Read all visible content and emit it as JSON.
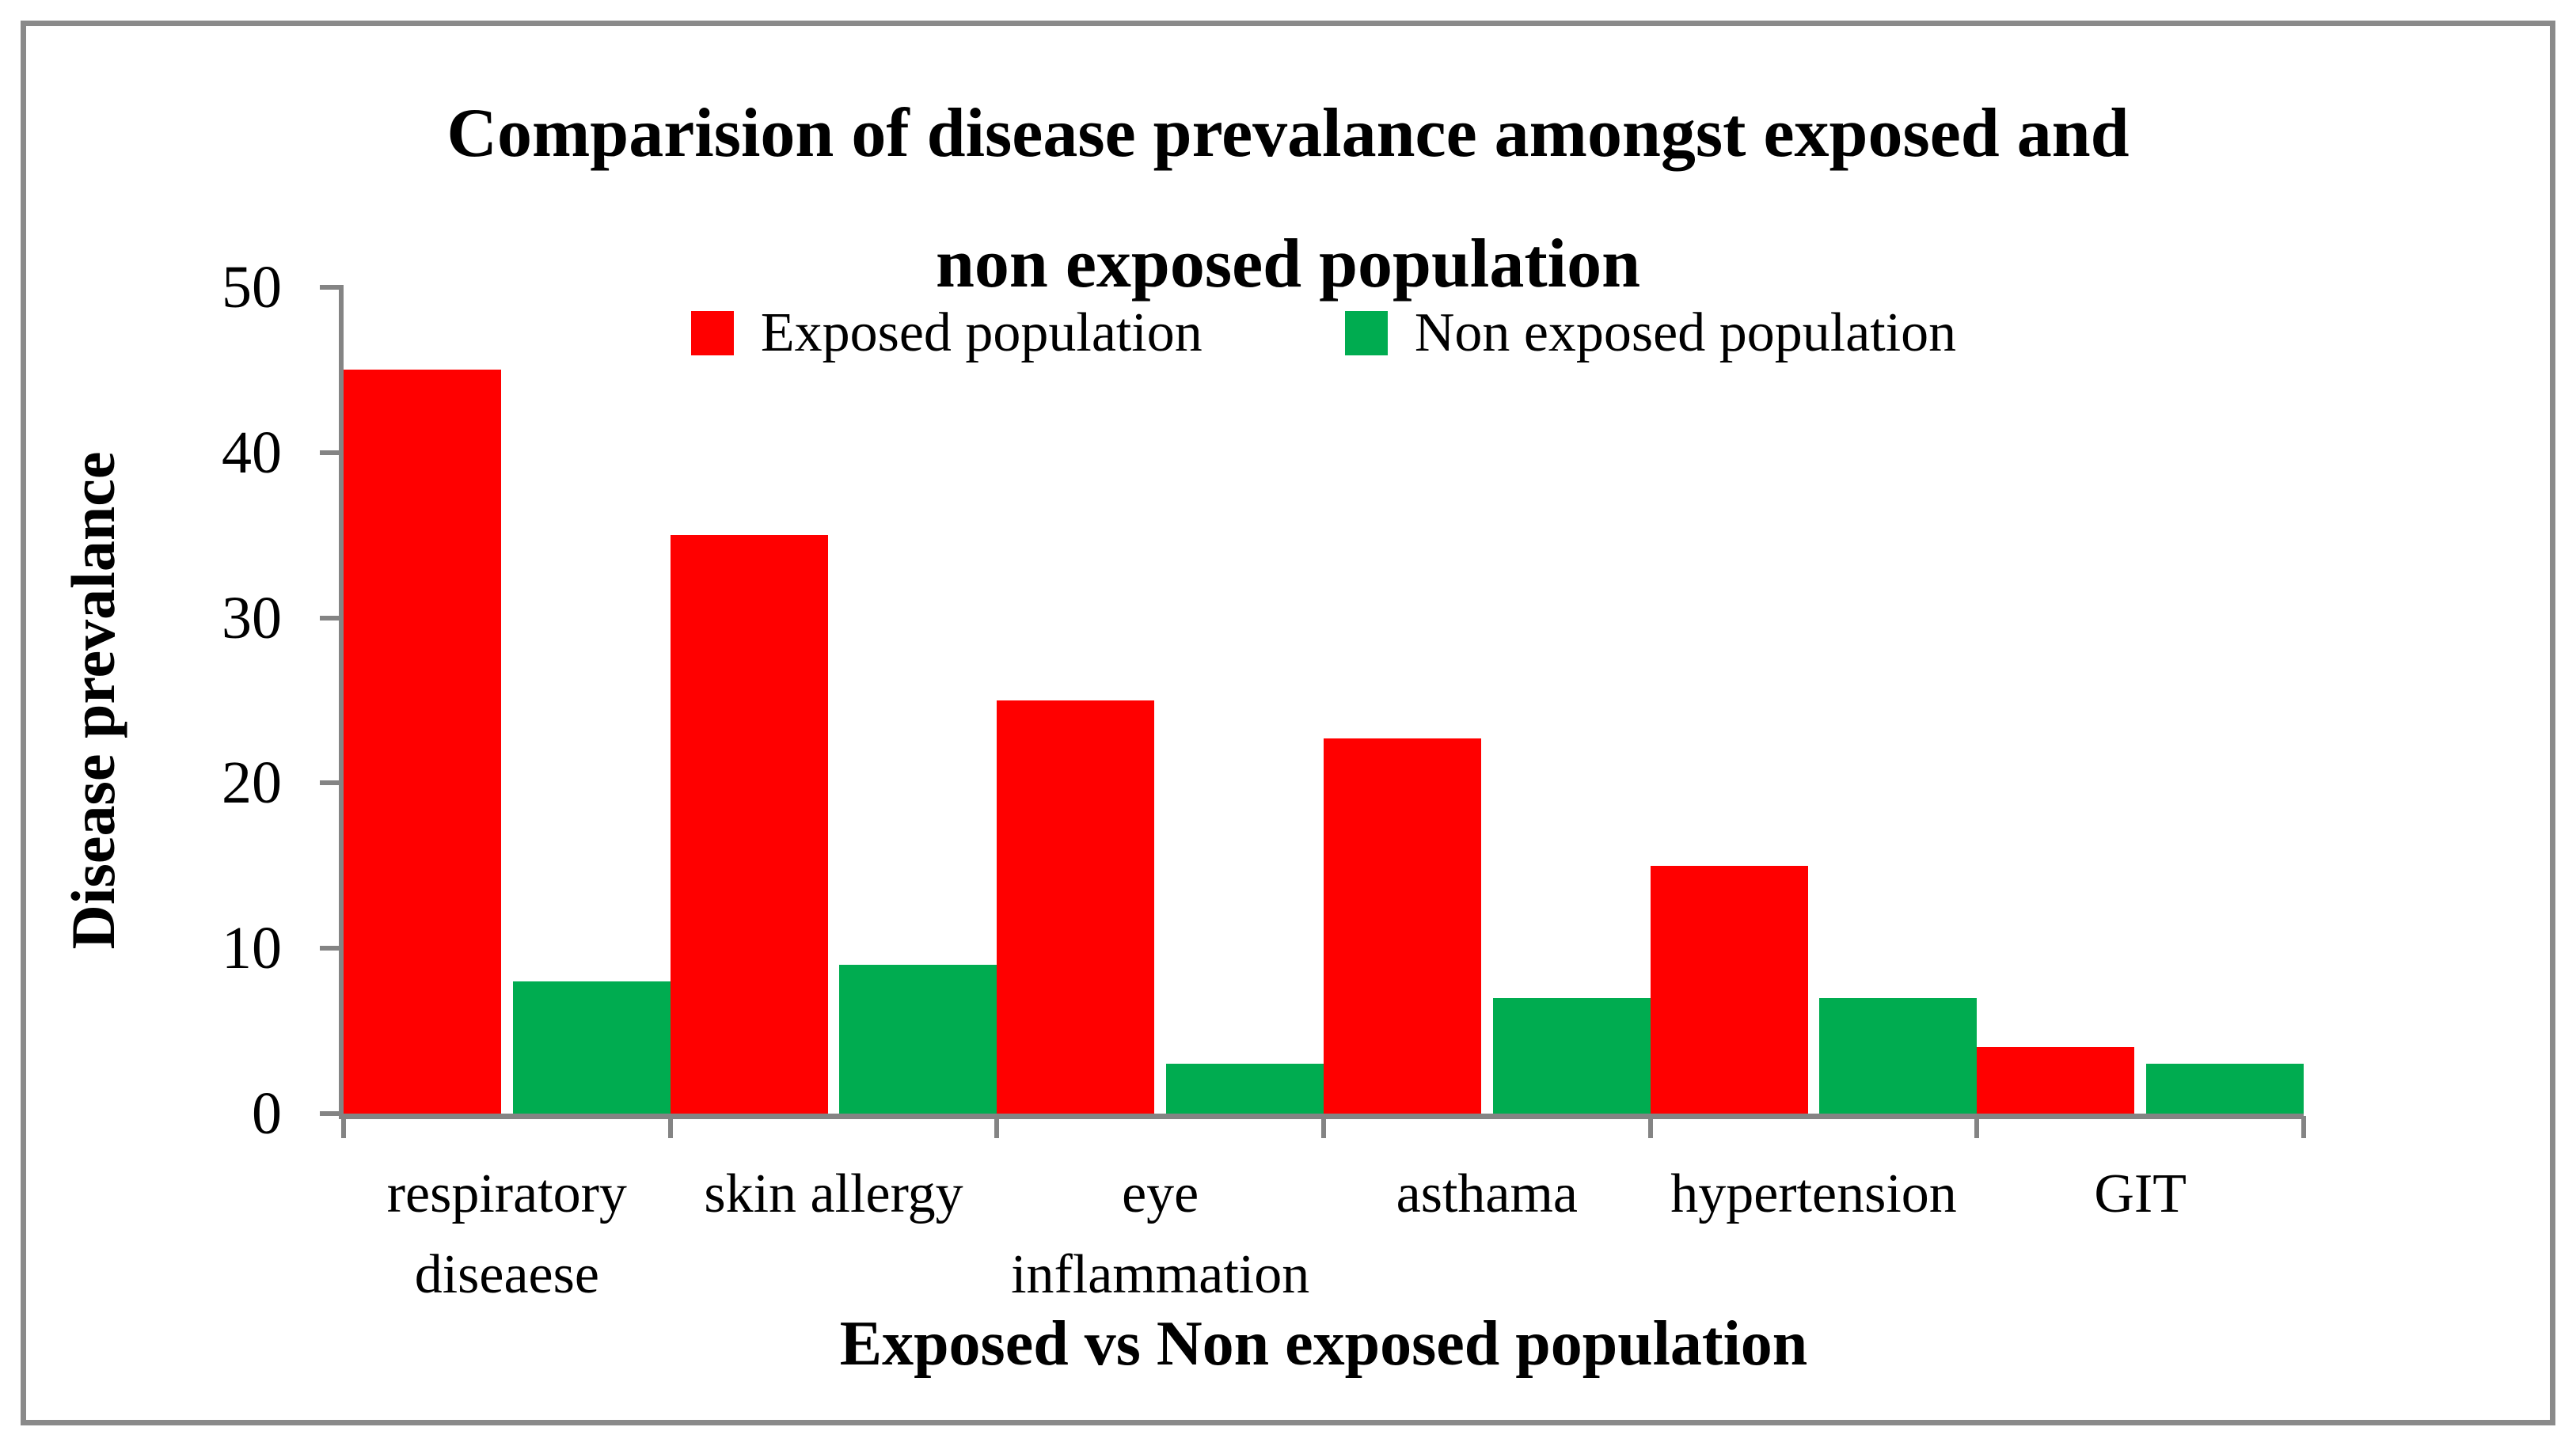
{
  "figure": {
    "background": "#ffffff",
    "border_color": "#8a8a8a",
    "axis_color": "#848484",
    "text_color": "#000000"
  },
  "chart_data": {
    "type": "bar",
    "title": "Comparision of disease prevalance amongst exposed and non exposed population",
    "title_lines": [
      "Comparision of disease prevalance amongst exposed and",
      "non exposed population"
    ],
    "xlabel": "Exposed vs Non exposed population",
    "ylabel": "Disease prevalance",
    "categories": [
      "respiratory diseaese",
      "skin allergy",
      "eye inflammation",
      "asthama",
      "hypertension",
      "GIT"
    ],
    "category_label_lines": [
      [
        "respiratory",
        "diseaese"
      ],
      [
        "skin allergy"
      ],
      [
        "eye",
        "inflammation"
      ],
      [
        "asthama"
      ],
      [
        "hypertension"
      ],
      [
        "GIT"
      ]
    ],
    "series": [
      {
        "name": "Exposed population",
        "color": "#ff0000",
        "values": [
          45,
          35,
          25,
          22.7,
          15,
          4
        ]
      },
      {
        "name": "Non exposed population",
        "color": "#00ac50",
        "values": [
          8,
          9,
          3,
          7,
          7,
          3
        ]
      }
    ],
    "ylim": [
      0,
      50
    ],
    "yticks": [
      0,
      10,
      20,
      30,
      40,
      50
    ],
    "grid": false,
    "legend_position": "top-center"
  }
}
